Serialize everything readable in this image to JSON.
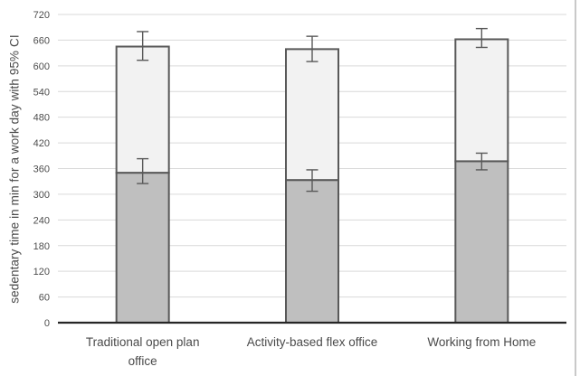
{
  "chart_data": {
    "type": "bar",
    "stacked": true,
    "title": "",
    "xlabel": "",
    "ylabel": "sedentary time in min for a work day with 95% CI",
    "ylim": [
      0,
      720
    ],
    "yticks": [
      0,
      60,
      120,
      180,
      240,
      300,
      360,
      420,
      480,
      540,
      600,
      660,
      720
    ],
    "grid": "horizontal",
    "legend": "none",
    "error_bars": "95% CI whiskers at top of each stacked segment",
    "categories": [
      "Traditional open plan office",
      "Activity-based flex office",
      "Working from Home"
    ],
    "category_label_lines": [
      [
        "Traditional open plan",
        "office"
      ],
      [
        "Activity-based flex office"
      ],
      [
        "Working from Home"
      ]
    ],
    "series": [
      {
        "name": "lower segment (dark gray)",
        "role": "stack-bottom",
        "color": "#bfbfbf",
        "values": [
          350,
          333,
          377
        ],
        "ci": [
          [
            325,
            383
          ],
          [
            307,
            357
          ],
          [
            357,
            396
          ]
        ]
      },
      {
        "name": "upper segment (light gray)",
        "role": "stack-top",
        "color": "#f2f2f2",
        "values": [
          295,
          306,
          285
        ],
        "stack_totals": [
          645,
          639,
          662
        ],
        "ci": [
          [
            613,
            680
          ],
          [
            610,
            669
          ],
          [
            643,
            687
          ]
        ]
      }
    ],
    "style": {
      "bar_border_color": "#595959",
      "error_bar_color": "#595959",
      "gridline_color": "#d9d9d9",
      "axis_line_color": "#262626",
      "text_color": "#4a4a4a",
      "background": "#ffffff",
      "frame_right_color": "#c9c9c9"
    }
  }
}
